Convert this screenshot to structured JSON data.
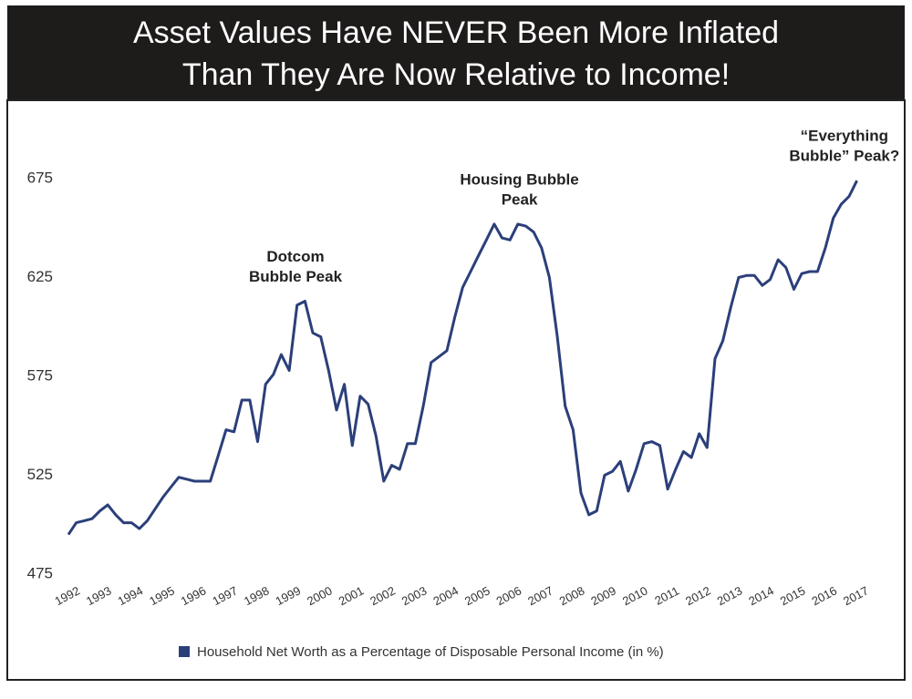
{
  "chart_data": {
    "type": "line",
    "title": [
      "Asset Values Have NEVER Been More Inflated",
      "Than They Are Now Relative to Income!"
    ],
    "x": [
      1992,
      1992.25,
      1992.5,
      1992.75,
      1993,
      1993.25,
      1993.5,
      1993.75,
      1994,
      1994.25,
      1994.5,
      1994.75,
      1995,
      1995.25,
      1995.5,
      1995.75,
      1996,
      1996.25,
      1996.5,
      1996.75,
      1997,
      1997.25,
      1997.5,
      1997.75,
      1998,
      1998.25,
      1998.5,
      1998.75,
      1999,
      1999.25,
      1999.5,
      1999.75,
      2000,
      2000.25,
      2000.5,
      2000.75,
      2001,
      2001.25,
      2001.5,
      2001.75,
      2002,
      2002.25,
      2002.5,
      2002.75,
      2003,
      2003.25,
      2003.5,
      2003.75,
      2004,
      2004.25,
      2004.5,
      2004.75,
      2005,
      2005.25,
      2005.5,
      2005.75,
      2006,
      2006.25,
      2006.5,
      2006.75,
      2007,
      2007.25,
      2007.5,
      2007.75,
      2008,
      2008.25,
      2008.5,
      2008.75,
      2009,
      2009.25,
      2009.5,
      2009.75,
      2010,
      2010.25,
      2010.5,
      2010.75,
      2011,
      2011.25,
      2011.5,
      2011.75,
      2012,
      2012.25,
      2012.5,
      2012.75,
      2013,
      2013.25,
      2013.5,
      2013.75,
      2014,
      2014.25,
      2014.5,
      2014.75,
      2015,
      2015.25,
      2015.5,
      2015.75,
      2016,
      2016.25,
      2016.5,
      2016.75,
      2017
    ],
    "series": [
      {
        "name": "Household Net Worth as a Percentage of Disposable Personal Income (in %)",
        "color": "#2b3f7a",
        "values": [
          495,
          501,
          502,
          503,
          507,
          510,
          505,
          501,
          501,
          498,
          502,
          508,
          514,
          519,
          524,
          523,
          522,
          522,
          522,
          535,
          548,
          547,
          563,
          563,
          542,
          571,
          576,
          586,
          578,
          611,
          613,
          597,
          595,
          578,
          558,
          571,
          540,
          565,
          561,
          545,
          522,
          530,
          528,
          541,
          541,
          560,
          582,
          585,
          588,
          605,
          620,
          628,
          636,
          644,
          652,
          645,
          644,
          652,
          651,
          648,
          640,
          625,
          595,
          560,
          548,
          516,
          505,
          507,
          525,
          527,
          532,
          517,
          528,
          541,
          542,
          540,
          518,
          528,
          537,
          534,
          546,
          539,
          584,
          593,
          610,
          625,
          626,
          626,
          621,
          624,
          634,
          630,
          619,
          627,
          628,
          628,
          640,
          655,
          662,
          666,
          674
        ]
      }
    ],
    "xlim": [
      1992,
      2017.3
    ],
    "xticks": [
      1992,
      1993,
      1994,
      1995,
      1996,
      1997,
      1998,
      1999,
      2000,
      2001,
      2002,
      2003,
      2004,
      2005,
      2006,
      2007,
      2008,
      2009,
      2010,
      2011,
      2012,
      2013,
      2014,
      2015,
      2016,
      2017
    ],
    "ylim": [
      475,
      695
    ],
    "yticks": [
      475,
      525,
      575,
      625,
      675
    ],
    "grid": false,
    "annotations": [
      {
        "lines": [
          "Dotcom",
          "Bubble Peak"
        ],
        "x": 1999.2,
        "y": 613
      },
      {
        "lines": [
          "Housing Bubble",
          "Peak"
        ],
        "x": 2006.3,
        "y": 652
      },
      {
        "lines": [
          "“Everything",
          "Bubble” Peak?"
        ],
        "x": 2016.6,
        "y": 674
      }
    ],
    "legend": "bottom"
  }
}
